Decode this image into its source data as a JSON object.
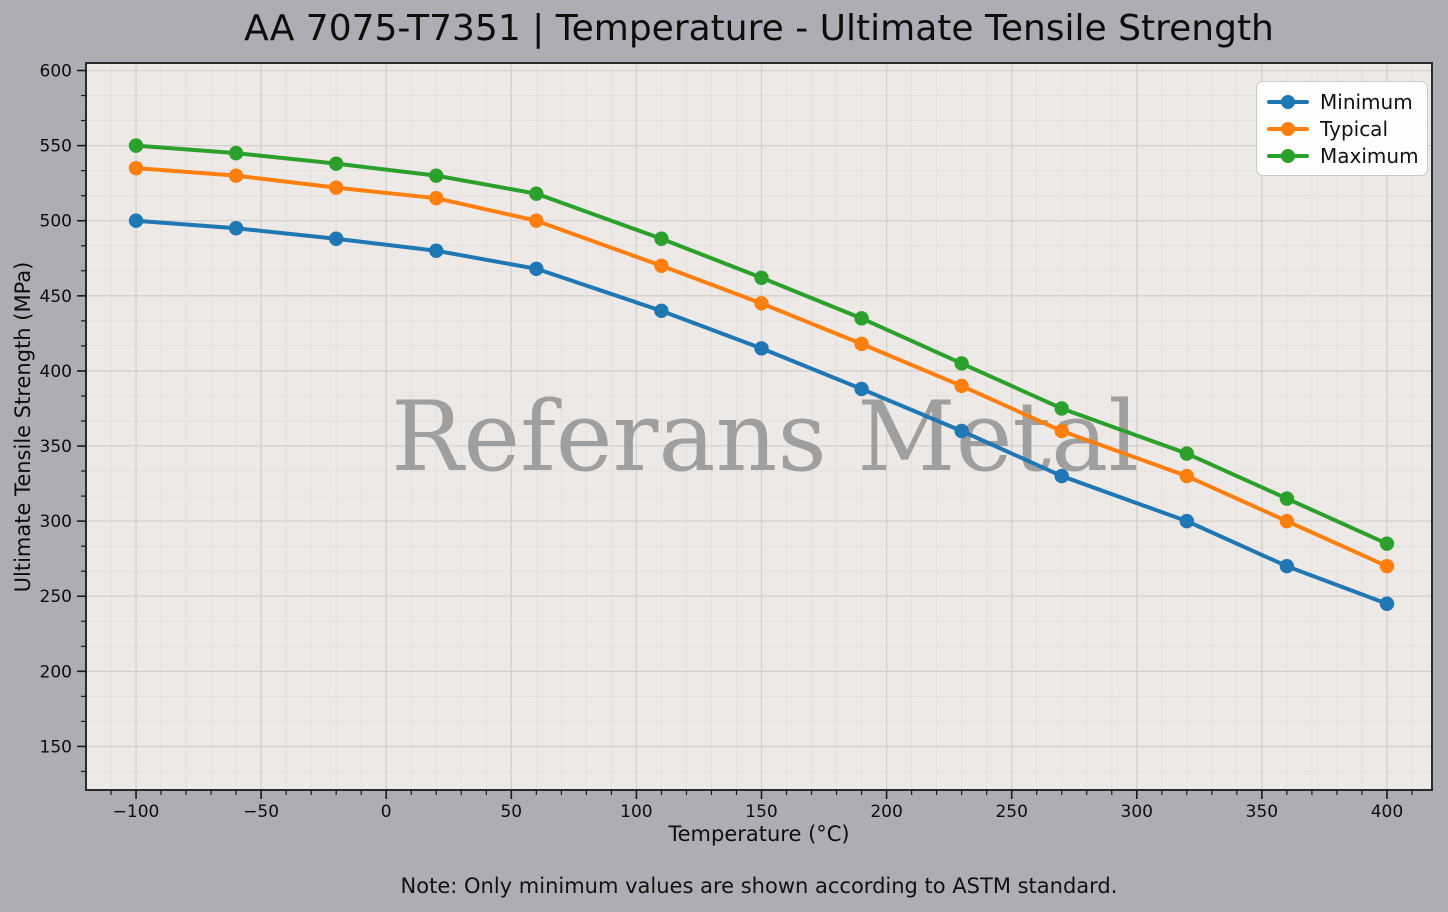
{
  "note": "Note: Only minimum values are shown according to ASTM standard.",
  "watermark": "Referans Metal",
  "colors": {
    "figure_bg": "#adadb5",
    "axes_bg": "#ede9e7",
    "grid_major": "#d4d1cf",
    "grid_minor": "#e2dfdd",
    "spine": "#2b2b2b",
    "tick": "#1a1a1a",
    "text": "#0d0d0d",
    "watermark": "#9c9c9c",
    "legend_bg": "#ffffff",
    "legend_border": "#c9c9c9"
  },
  "chart_data": {
    "type": "line",
    "title": "AA 7075-T7351 | Temperature - Ultimate Tensile Strength",
    "xlabel": "Temperature (°C)",
    "ylabel": "Ultimate Tensile Strength (MPa)",
    "x": [
      -100,
      -60,
      -20,
      20,
      60,
      110,
      150,
      190,
      230,
      270,
      320,
      360,
      400
    ],
    "series": [
      {
        "name": "Minimum",
        "color": "#1f77b4",
        "values": [
          500,
          495,
          488,
          480,
          468,
          440,
          415,
          388,
          360,
          330,
          300,
          270,
          245
        ]
      },
      {
        "name": "Typical",
        "color": "#ff7f0e",
        "values": [
          535,
          530,
          522,
          515,
          500,
          470,
          445,
          418,
          390,
          360,
          330,
          300,
          270
        ]
      },
      {
        "name": "Maximum",
        "color": "#2ca02c",
        "values": [
          550,
          545,
          538,
          530,
          518,
          488,
          462,
          435,
          405,
          375,
          345,
          315,
          285
        ]
      }
    ],
    "xlim": [
      -120,
      418
    ],
    "ylim": [
      121,
      605
    ],
    "xticks": [
      -100,
      -50,
      0,
      50,
      100,
      150,
      200,
      250,
      300,
      350,
      400
    ],
    "yticks": [
      150,
      200,
      250,
      300,
      350,
      400,
      450,
      500,
      550,
      600
    ],
    "x_minor_divisions": 5,
    "y_minor_divisions": 3,
    "grid": true,
    "legend_position": "upper right",
    "marker": "circle"
  }
}
